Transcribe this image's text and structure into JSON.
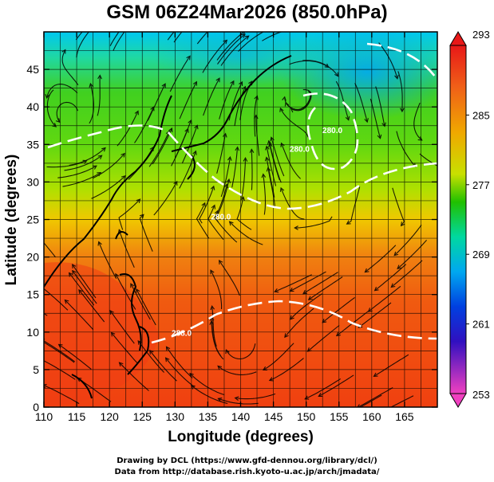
{
  "title": "GSM 06Z24Mar2026 (850.0hPa)",
  "credits": {
    "drawing": "Drawing by DCL (https://www.gfd-dennou.org/library/dcl/)",
    "data": "Data from http://database.rish.kyoto-u.ac.jp/arch/jmadata/"
  },
  "chart_data": {
    "type": "heatmap",
    "variable": "temperature with wind streamlines",
    "level": "850.0hPa",
    "xlabel": "Longitude (degrees)",
    "ylabel": "Latitude (degrees)",
    "xlim": [
      110,
      170
    ],
    "ylim": [
      0,
      50
    ],
    "x_ticks": [
      "110",
      "115",
      "120",
      "125",
      "130",
      "135",
      "140",
      "145",
      "150",
      "155",
      "160",
      "165"
    ],
    "y_ticks": [
      "0",
      "5",
      "10",
      "15",
      "20",
      "25",
      "30",
      "35",
      "40",
      "45"
    ],
    "colorbar": {
      "min": 253,
      "max": 293,
      "labels": [
        "293",
        "285",
        "277",
        "269",
        "261",
        "253"
      ],
      "colors": [
        "#e01010",
        "#f07010",
        "#f0c000",
        "#a0e000",
        "#20c000",
        "#00d8a0",
        "#00b0f0",
        "#0050e0",
        "#3010c0",
        "#c000c0",
        "#f040c0"
      ]
    },
    "contours": [
      {
        "label": "280.0",
        "lon": 149,
        "lat": 34
      },
      {
        "label": "280.0",
        "lon": 137,
        "lat": 25
      },
      {
        "label": "280.0",
        "lon": 154,
        "lat": 36.5
      },
      {
        "label": "288.0",
        "lon": 131,
        "lat": 9.5
      }
    ]
  }
}
